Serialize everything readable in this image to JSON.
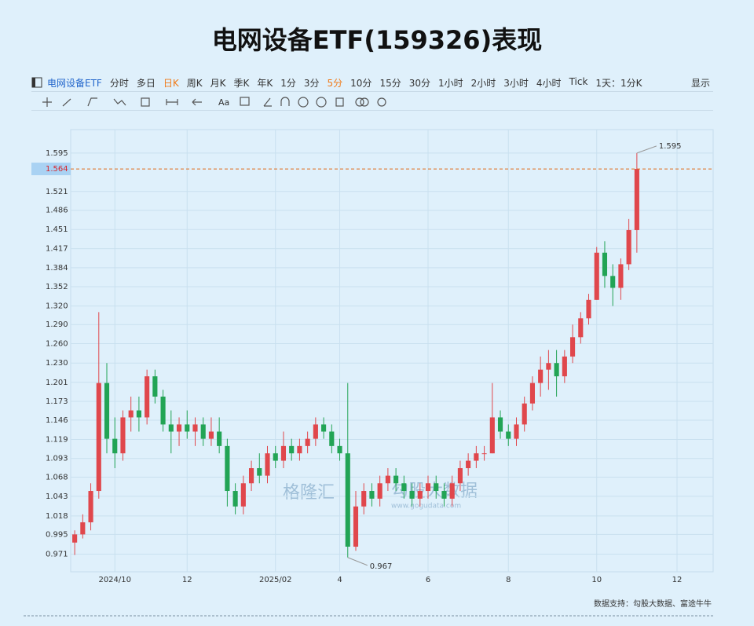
{
  "title": "电网设备ETF(159326)表现",
  "toolbar": {
    "symbol": "电网设备ETF",
    "periods": [
      {
        "label": "分时"
      },
      {
        "label": "多日"
      },
      {
        "label": "日K",
        "highlight": true
      },
      {
        "label": "周K"
      },
      {
        "label": "月K"
      },
      {
        "label": "季K"
      },
      {
        "label": "年K"
      },
      {
        "label": "1分"
      },
      {
        "label": "3分"
      },
      {
        "label": "5分",
        "highlight": true
      },
      {
        "label": "10分"
      },
      {
        "label": "15分"
      },
      {
        "label": "30分"
      },
      {
        "label": "1小时"
      },
      {
        "label": "2小时"
      },
      {
        "label": "3小时"
      },
      {
        "label": "4小时"
      },
      {
        "label": "Tick"
      }
    ],
    "range": "1天：1分K",
    "display": "显示",
    "tool_text": "Aa"
  },
  "chart_data": {
    "type": "candlestick",
    "log_scale": true,
    "grid": true,
    "up_color": "#e0474c",
    "down_color": "#22a455",
    "last_price_color": "#e06a1a",
    "categories": [
      "2024/10",
      "12",
      "2025/02",
      "4",
      "6",
      "8",
      "10",
      "12"
    ],
    "category_index": [
      5,
      14,
      25,
      33,
      44,
      54,
      65,
      75
    ],
    "slots": 80,
    "open": [
      0.985,
      0.995,
      1.01,
      1.05,
      1.2,
      1.12,
      1.1,
      1.15,
      1.16,
      1.15,
      1.21,
      1.18,
      1.14,
      1.13,
      1.14,
      1.13,
      1.14,
      1.12,
      1.13,
      1.11,
      1.05,
      1.03,
      1.06,
      1.08,
      1.07,
      1.1,
      1.09,
      1.11,
      1.1,
      1.11,
      1.12,
      1.14,
      1.13,
      1.11,
      1.1,
      0.98,
      1.03,
      1.05,
      1.04,
      1.06,
      1.07,
      1.06,
      1.05,
      1.04,
      1.05,
      1.06,
      1.05,
      1.04,
      1.06,
      1.08,
      1.09,
      1.1,
      1.1,
      1.15,
      1.13,
      1.12,
      1.14,
      1.17,
      1.2,
      1.22,
      1.23,
      1.21,
      1.24,
      1.27,
      1.3,
      1.33,
      1.41,
      1.37,
      1.35,
      1.39,
      1.45
    ],
    "high": [
      1.0,
      1.02,
      1.06,
      1.31,
      1.23,
      1.15,
      1.16,
      1.18,
      1.18,
      1.22,
      1.22,
      1.19,
      1.16,
      1.15,
      1.16,
      1.15,
      1.15,
      1.15,
      1.15,
      1.12,
      1.06,
      1.07,
      1.09,
      1.1,
      1.11,
      1.11,
      1.13,
      1.12,
      1.12,
      1.13,
      1.15,
      1.15,
      1.14,
      1.12,
      1.2,
      1.05,
      1.06,
      1.06,
      1.07,
      1.08,
      1.08,
      1.07,
      1.06,
      1.06,
      1.07,
      1.07,
      1.06,
      1.07,
      1.09,
      1.1,
      1.11,
      1.11,
      1.2,
      1.16,
      1.14,
      1.15,
      1.18,
      1.21,
      1.24,
      1.25,
      1.25,
      1.25,
      1.29,
      1.31,
      1.34,
      1.42,
      1.43,
      1.39,
      1.4,
      1.47,
      1.595
    ],
    "low": [
      0.97,
      0.99,
      1.0,
      1.04,
      1.1,
      1.08,
      1.09,
      1.13,
      1.13,
      1.14,
      1.17,
      1.13,
      1.1,
      1.11,
      1.12,
      1.11,
      1.11,
      1.11,
      1.1,
      1.03,
      1.02,
      1.02,
      1.05,
      1.06,
      1.06,
      1.08,
      1.08,
      1.09,
      1.09,
      1.1,
      1.11,
      1.12,
      1.1,
      1.09,
      0.967,
      0.975,
      1.02,
      1.03,
      1.03,
      1.05,
      1.05,
      1.04,
      1.03,
      1.03,
      1.04,
      1.04,
      1.03,
      1.03,
      1.05,
      1.07,
      1.08,
      1.09,
      1.1,
      1.12,
      1.11,
      1.11,
      1.13,
      1.16,
      1.18,
      1.19,
      1.18,
      1.2,
      1.23,
      1.26,
      1.29,
      1.33,
      1.35,
      1.32,
      1.33,
      1.38,
      1.41
    ],
    "close": [
      0.995,
      1.01,
      1.05,
      1.2,
      1.12,
      1.1,
      1.15,
      1.16,
      1.15,
      1.21,
      1.18,
      1.14,
      1.13,
      1.14,
      1.13,
      1.14,
      1.12,
      1.13,
      1.11,
      1.05,
      1.03,
      1.06,
      1.08,
      1.07,
      1.1,
      1.09,
      1.11,
      1.1,
      1.11,
      1.12,
      1.14,
      1.13,
      1.11,
      1.1,
      0.98,
      1.03,
      1.05,
      1.04,
      1.06,
      1.07,
      1.06,
      1.05,
      1.04,
      1.05,
      1.06,
      1.05,
      1.04,
      1.06,
      1.08,
      1.09,
      1.1,
      1.1,
      1.15,
      1.13,
      1.12,
      1.14,
      1.17,
      1.2,
      1.22,
      1.23,
      1.21,
      1.24,
      1.27,
      1.3,
      1.33,
      1.41,
      1.37,
      1.35,
      1.39,
      1.45,
      1.564
    ],
    "last_price": 1.564,
    "ylim": [
      0.95,
      1.642
    ],
    "yticks": [
      0.971,
      0.995,
      1.018,
      1.043,
      1.068,
      1.093,
      1.119,
      1.146,
      1.173,
      1.201,
      {
        "value": 1.23,
        "label": "1.230"
      },
      {
        "value": 1.26,
        "label": "1.260"
      },
      {
        "value": 1.29,
        "label": "1.290"
      },
      {
        "value": 1.32,
        "label": "1.320"
      },
      1.352,
      1.384,
      1.417,
      1.451,
      1.486,
      1.521,
      1.595
    ],
    "max_index": 70,
    "min_index": 34
  },
  "watermark": {
    "brand": "格隆汇",
    "brand2": "勾股大数据",
    "url": "www.gogudata.com"
  },
  "footer": "数据支持：勾股大数据、富途牛牛"
}
